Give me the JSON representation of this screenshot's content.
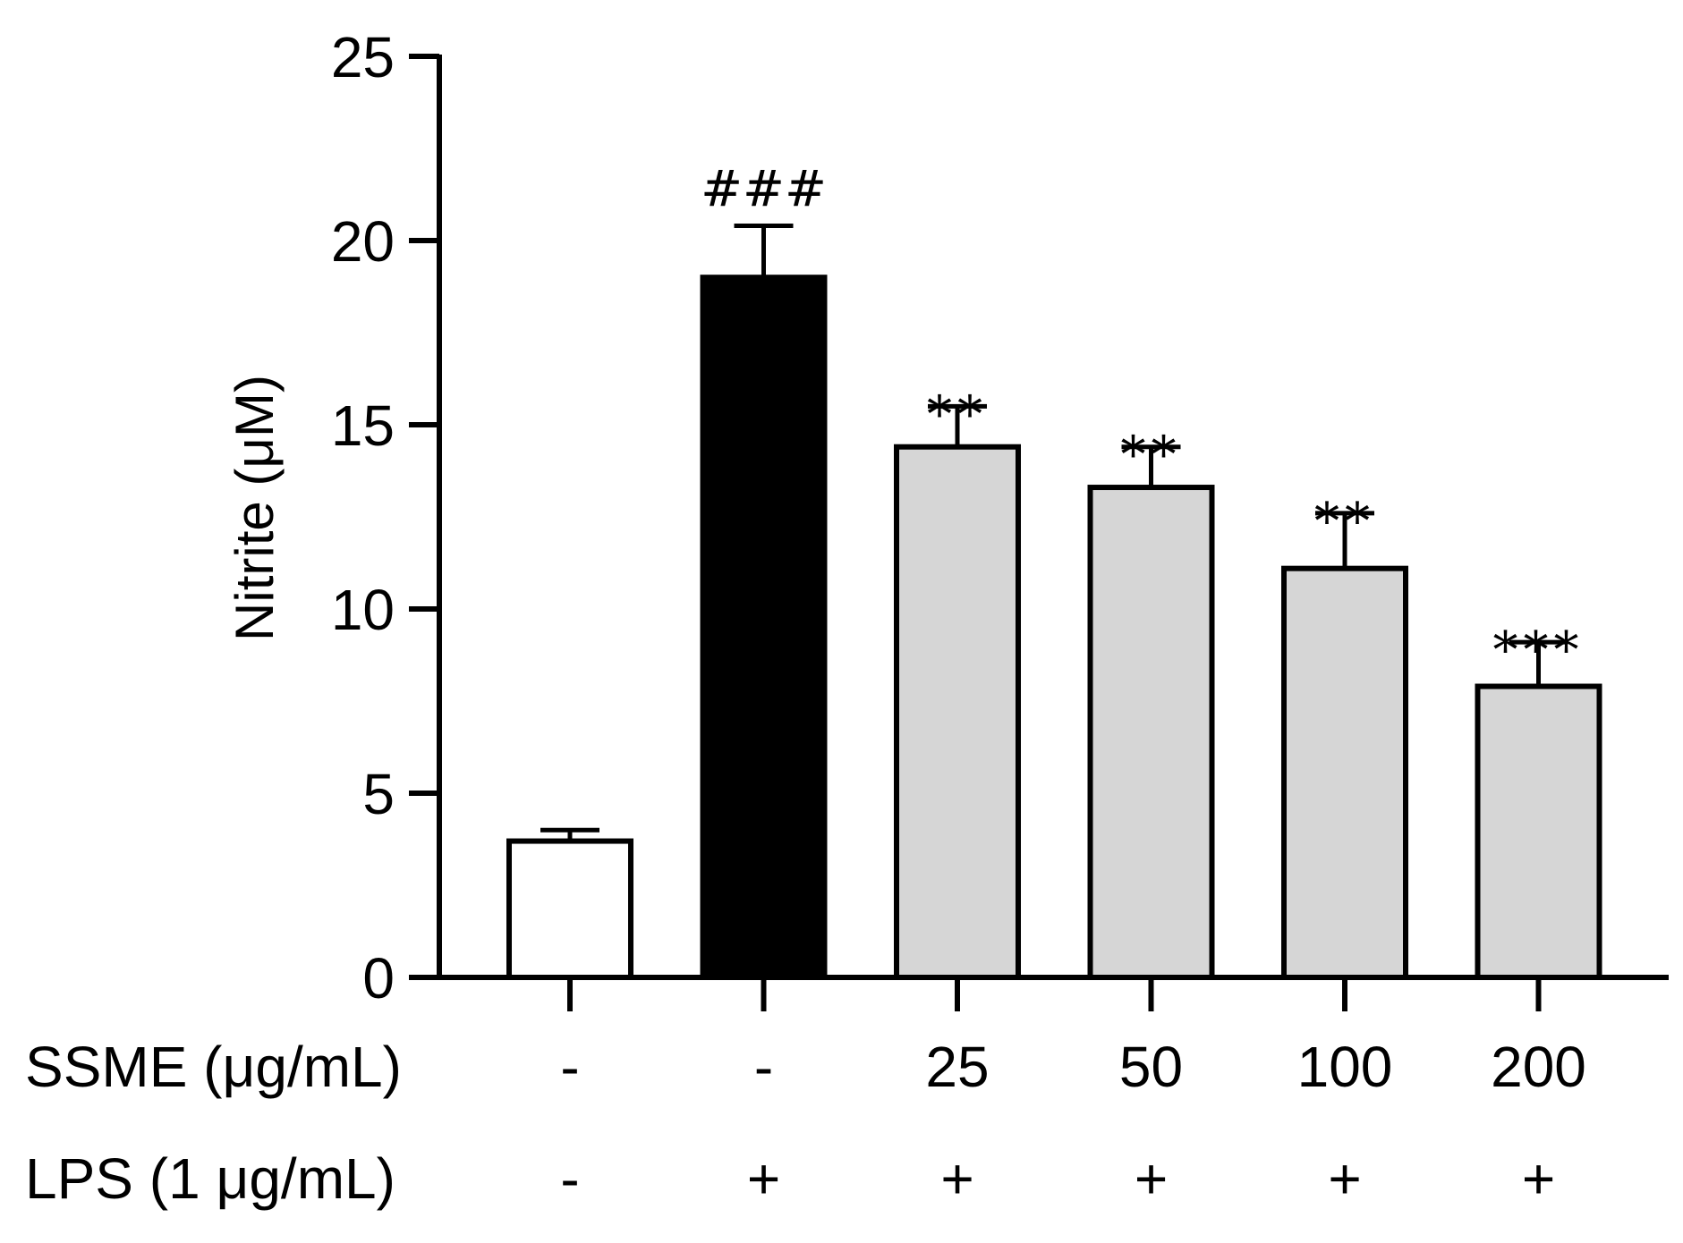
{
  "chart_data": {
    "type": "bar",
    "title": "",
    "xlabel": "",
    "ylabel": "Nitrite (μM)",
    "ylim": [
      0,
      25
    ],
    "yticks": [
      0,
      5,
      10,
      15,
      20,
      25
    ],
    "grid": false,
    "series": [
      {
        "values": [
          3.7,
          19.0,
          14.4,
          13.3,
          11.1,
          7.9
        ],
        "errors": [
          0.3,
          1.4,
          1.1,
          1.1,
          1.5,
          1.2
        ],
        "fills": [
          "#ffffff",
          "#000000",
          "#d6d6d6",
          "#d6d6d6",
          "#d6d6d6",
          "#d6d6d6"
        ],
        "annotations": [
          "",
          "###",
          "**",
          "**",
          "**",
          "***"
        ]
      }
    ],
    "conditions": [
      {
        "label": "SSME (μg/mL)",
        "values": [
          "-",
          "-",
          "25",
          "50",
          "100",
          "200"
        ]
      },
      {
        "label": "LPS (1 μg/mL)",
        "values": [
          "-",
          "+",
          "+",
          "+",
          "+",
          "+"
        ]
      }
    ]
  }
}
